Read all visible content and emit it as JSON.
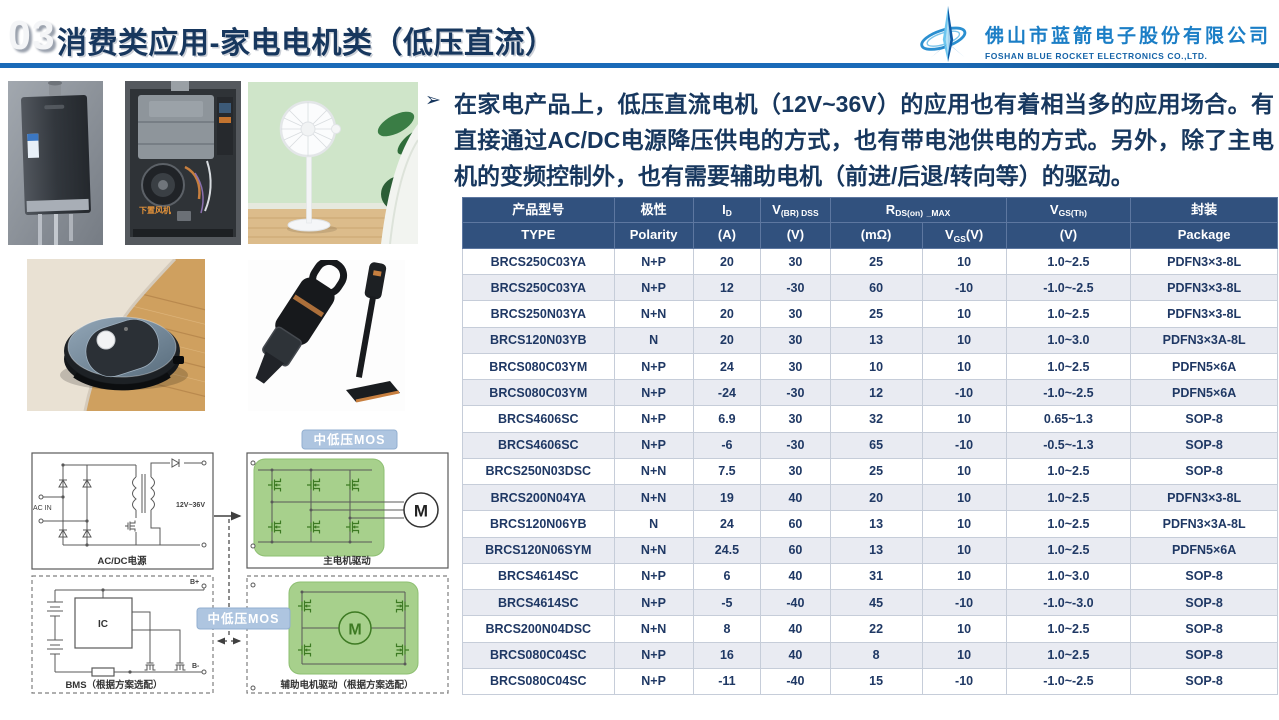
{
  "header": {
    "number": "03",
    "title": "消费类应用-家电电机类（低压直流）",
    "company_cn": "佛山市蓝箭电子股份有限公司",
    "company_en": "FOSHAN BLUE ROCKET ELECTRONICS CO.,LTD."
  },
  "intro": {
    "bullet": "➢",
    "text": "在家电产品上，低压直流电机（12V~36V）的应用也有着相当多的应用场合。有直接通过AC/DC电源降压供电的方式，也有带电池供电的方式。另外，除了主电机的变频控制外，也有需要辅助电机（前进/后退/转向等）的驱动。"
  },
  "diagram": {
    "ac_in": "AC IN",
    "voltage": "12V~36V",
    "acdc_caption": "AC/DC电源",
    "main_caption": "主电机驱动",
    "bms_caption": "BMS（根据方案选配）",
    "aux_caption": "辅助电机驱动（根据方案选配）",
    "mos_badge": "中低压MOS",
    "ic_label": "IC",
    "b_plus": "B+",
    "b_minus": "B-",
    "motor_label": "M",
    "heater_label": "下置风机"
  },
  "table": {
    "col_widths_pct": [
      18.6,
      9.7,
      8.3,
      8.5,
      11.3,
      10.3,
      15.3,
      18.0
    ],
    "header_row1": [
      {
        "t": "产品型号"
      },
      {
        "t": "极性"
      },
      {
        "parts": [
          {
            "t": "I"
          },
          {
            "t": "D",
            "sub": true
          }
        ]
      },
      {
        "parts": [
          {
            "t": "V"
          },
          {
            "t": "(BR) DSS",
            "sub": true
          }
        ]
      },
      {
        "span": 2,
        "parts": [
          {
            "t": "R"
          },
          {
            "t": "DS(on)",
            "sub": true
          },
          {
            "t": " "
          },
          {
            "t": "_MAX",
            "sub": true
          }
        ]
      },
      {
        "parts": [
          {
            "t": "V"
          },
          {
            "t": "GS(Th)",
            "sub": true
          }
        ]
      },
      {
        "t": "封装"
      }
    ],
    "header_row2": [
      {
        "t": "TYPE"
      },
      {
        "t": "Polarity"
      },
      {
        "t": "(A)"
      },
      {
        "t": "(V)"
      },
      {
        "t": "(mΩ)"
      },
      {
        "parts": [
          {
            "t": "V"
          },
          {
            "t": "GS",
            "sub": true
          },
          {
            "t": "(V)"
          }
        ]
      },
      {
        "t": "(V)"
      },
      {
        "t": "Package"
      }
    ],
    "rows": [
      [
        "BRCS250C03YA",
        "N+P",
        "20",
        "30",
        "25",
        "10",
        "1.0~2.5",
        "PDFN3×3-8L"
      ],
      [
        "BRCS250C03YA",
        "N+P",
        "12",
        "-30",
        "60",
        "-10",
        "-1.0~-2.5",
        "PDFN3×3-8L"
      ],
      [
        "BRCS250N03YA",
        "N+N",
        "20",
        "30",
        "25",
        "10",
        "1.0~2.5",
        "PDFN3×3-8L"
      ],
      [
        "BRCS120N03YB",
        "N",
        "20",
        "30",
        "13",
        "10",
        "1.0~3.0",
        "PDFN3×3A-8L"
      ],
      [
        "BRCS080C03YM",
        "N+P",
        "24",
        "30",
        "10",
        "10",
        "1.0~2.5",
        "PDFN5×6A"
      ],
      [
        "BRCS080C03YM",
        "N+P",
        "-24",
        "-30",
        "12",
        "-10",
        "-1.0~-2.5",
        "PDFN5×6A"
      ],
      [
        "BRCS4606SC",
        "N+P",
        "6.9",
        "30",
        "32",
        "10",
        "0.65~1.3",
        "SOP-8"
      ],
      [
        "BRCS4606SC",
        "N+P",
        "-6",
        "-30",
        "65",
        "-10",
        "-0.5~-1.3",
        "SOP-8"
      ],
      [
        "BRCS250N03DSC",
        "N+N",
        "7.5",
        "30",
        "25",
        "10",
        "1.0~2.5",
        "SOP-8"
      ],
      [
        "BRCS200N04YA",
        "N+N",
        "19",
        "40",
        "20",
        "10",
        "1.0~2.5",
        "PDFN3×3-8L"
      ],
      [
        "BRCS120N06YB",
        "N",
        "24",
        "60",
        "13",
        "10",
        "1.0~2.5",
        "PDFN3×3A-8L"
      ],
      [
        "BRCS120N06SYM",
        "N+N",
        "24.5",
        "60",
        "13",
        "10",
        "1.0~2.5",
        "PDFN5×6A"
      ],
      [
        "BRCS4614SC",
        "N+P",
        "6",
        "40",
        "31",
        "10",
        "1.0~3.0",
        "SOP-8"
      ],
      [
        "BRCS4614SC",
        "N+P",
        "-5",
        "-40",
        "45",
        "-10",
        "-1.0~-3.0",
        "SOP-8"
      ],
      [
        "BRCS200N04DSC",
        "N+N",
        "8",
        "40",
        "22",
        "10",
        "1.0~2.5",
        "SOP-8"
      ],
      [
        "BRCS080C04SC",
        "N+P",
        "16",
        "40",
        "8",
        "10",
        "1.0~2.5",
        "SOP-8"
      ],
      [
        "BRCS080C04SC",
        "N+P",
        "-11",
        "-40",
        "15",
        "-10",
        "-1.0~-2.5",
        "SOP-8"
      ]
    ]
  }
}
